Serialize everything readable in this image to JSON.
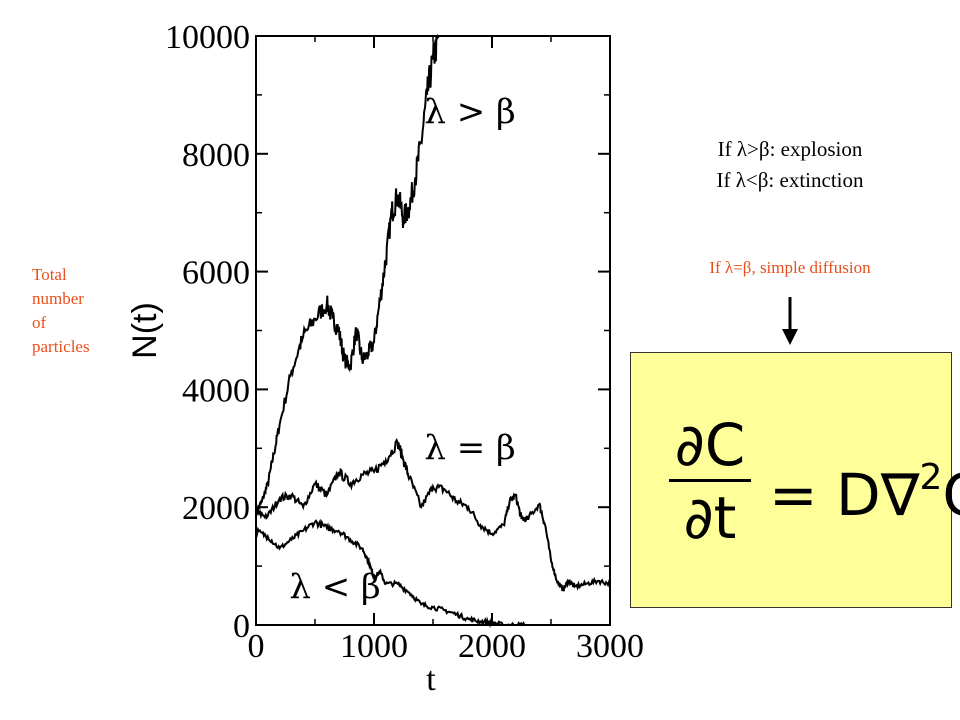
{
  "chart_data": {
    "type": "line",
    "xlabel": "t",
    "ylabel": "N(t)",
    "xlim": [
      0,
      3000
    ],
    "ylim": [
      0,
      10000
    ],
    "xticks": [
      "0",
      "1000",
      "2000",
      "3000"
    ],
    "yticks": [
      "0",
      "2000",
      "4000",
      "6000",
      "8000",
      "10000"
    ],
    "series": [
      {
        "name": "λ > β",
        "points": [
          [
            0,
            1900
          ],
          [
            50,
            2100
          ],
          [
            100,
            2400
          ],
          [
            150,
            2900
          ],
          [
            200,
            3400
          ],
          [
            300,
            4300
          ],
          [
            400,
            4900
          ],
          [
            500,
            5200
          ],
          [
            600,
            5450
          ],
          [
            650,
            5200
          ],
          [
            700,
            5000
          ],
          [
            750,
            4500
          ],
          [
            800,
            4400
          ],
          [
            850,
            5000
          ],
          [
            900,
            4500
          ],
          [
            950,
            4600
          ],
          [
            1000,
            4800
          ],
          [
            1050,
            5500
          ],
          [
            1100,
            6200
          ],
          [
            1150,
            7000
          ],
          [
            1200,
            7300
          ],
          [
            1250,
            6900
          ],
          [
            1300,
            7100
          ],
          [
            1350,
            7600
          ],
          [
            1400,
            8200
          ],
          [
            1450,
            9000
          ],
          [
            1500,
            9600
          ],
          [
            1550,
            10000
          ]
        ]
      },
      {
        "name": "λ = β",
        "points": [
          [
            0,
            1900
          ],
          [
            100,
            1850
          ],
          [
            200,
            2150
          ],
          [
            300,
            2200
          ],
          [
            400,
            2000
          ],
          [
            500,
            2400
          ],
          [
            600,
            2200
          ],
          [
            700,
            2600
          ],
          [
            800,
            2400
          ],
          [
            900,
            2550
          ],
          [
            1000,
            2600
          ],
          [
            1100,
            2800
          ],
          [
            1200,
            3100
          ],
          [
            1250,
            2800
          ],
          [
            1300,
            2500
          ],
          [
            1400,
            2000
          ],
          [
            1500,
            2350
          ],
          [
            1600,
            2300
          ],
          [
            1700,
            2100
          ],
          [
            1800,
            2000
          ],
          [
            1900,
            1700
          ],
          [
            2000,
            1550
          ],
          [
            2100,
            1700
          ],
          [
            2150,
            2100
          ],
          [
            2200,
            2200
          ],
          [
            2250,
            1800
          ],
          [
            2300,
            1800
          ],
          [
            2400,
            2050
          ],
          [
            2450,
            1700
          ],
          [
            2500,
            1100
          ],
          [
            2550,
            750
          ],
          [
            2600,
            600
          ],
          [
            2650,
            750
          ],
          [
            2700,
            650
          ],
          [
            2800,
            700
          ],
          [
            2900,
            750
          ],
          [
            3000,
            700
          ]
        ]
      },
      {
        "name": "λ < β",
        "points": [
          [
            0,
            1600
          ],
          [
            100,
            1500
          ],
          [
            200,
            1300
          ],
          [
            300,
            1450
          ],
          [
            400,
            1600
          ],
          [
            500,
            1750
          ],
          [
            600,
            1650
          ],
          [
            700,
            1600
          ],
          [
            800,
            1450
          ],
          [
            900,
            1300
          ],
          [
            950,
            1100
          ],
          [
            1000,
            800
          ],
          [
            1050,
            900
          ],
          [
            1100,
            700
          ],
          [
            1200,
            700
          ],
          [
            1300,
            550
          ],
          [
            1400,
            350
          ],
          [
            1500,
            300
          ],
          [
            1600,
            250
          ],
          [
            1700,
            180
          ],
          [
            1800,
            100
          ],
          [
            1900,
            60
          ],
          [
            2000,
            40
          ],
          [
            2100,
            0
          ],
          [
            2200,
            0
          ],
          [
            2280,
            0
          ]
        ]
      }
    ],
    "legend": "annotations next to curves",
    "grid": false
  },
  "side_label": [
    "Total",
    "number",
    "of",
    "particles"
  ],
  "notes": {
    "line1": "If λ>β: explosion",
    "line2": "If λ<β: extinction",
    "red": "If λ=β, simple diffusion"
  },
  "equation": {
    "num": "∂C",
    "den": "∂t",
    "rhs_prefix": "= D∇",
    "exponent": "2",
    "rhs_suffix": "C"
  }
}
